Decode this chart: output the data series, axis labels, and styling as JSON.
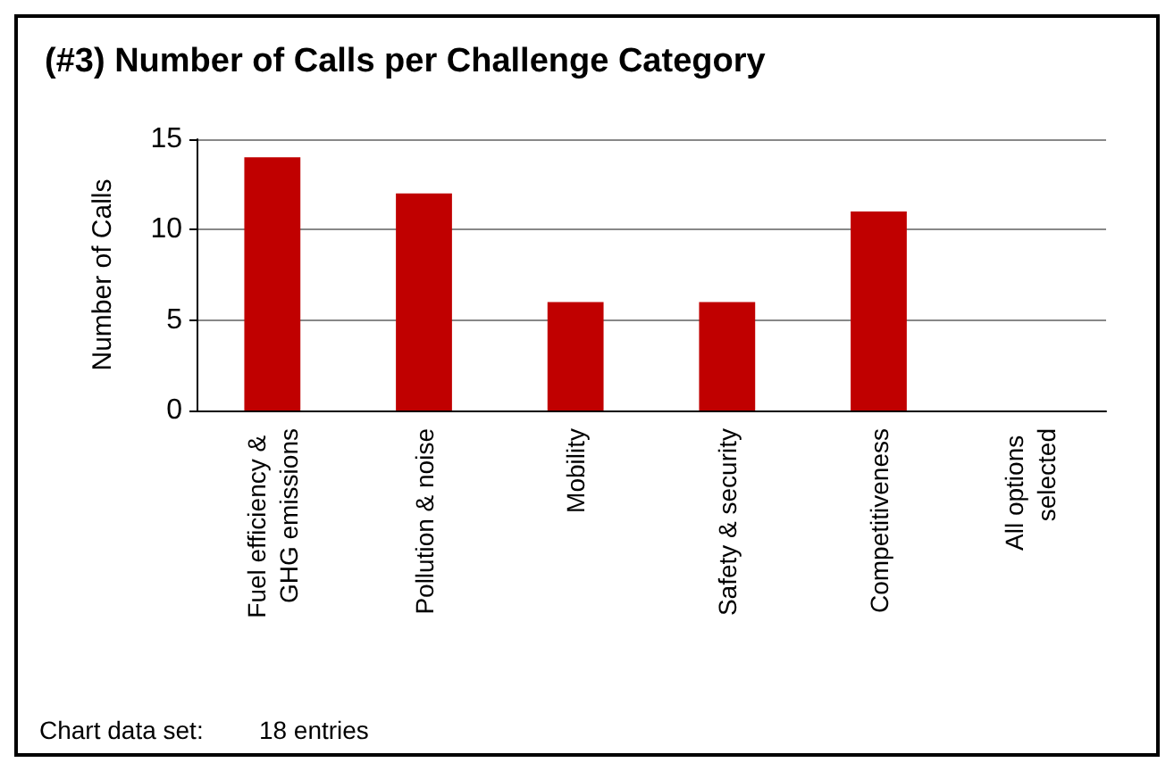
{
  "chart_data": {
    "type": "bar",
    "title": "(#3) Number of Calls per Challenge Category",
    "ylabel": "Number of Calls",
    "categories": [
      "Fuel efficiency & GHG emissions",
      "Pollution & noise",
      "Mobility",
      "Safety & security",
      "Competitiveness",
      "All options selected"
    ],
    "values": [
      14,
      12,
      6,
      6,
      11,
      0
    ],
    "color": "#c00000",
    "ylim": [
      0,
      15
    ],
    "yticks": [
      0,
      5,
      10,
      15
    ],
    "grid": "y",
    "annotations": [
      "Chart data set:        18 entries"
    ]
  }
}
